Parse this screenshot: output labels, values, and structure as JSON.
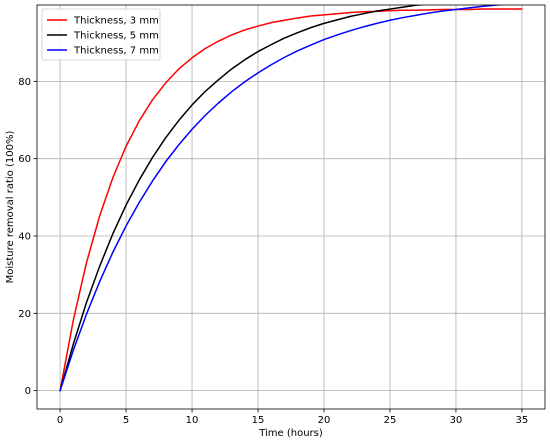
{
  "chart_data": {
    "type": "line",
    "title": "",
    "xlabel": "Time (hours)",
    "ylabel": "Moisture removal ratio (100%)",
    "xlim": [
      -1.75,
      36.75
    ],
    "ylim": [
      -4.75,
      99.75
    ],
    "xticks": [
      0,
      5,
      10,
      15,
      20,
      25,
      30,
      35
    ],
    "yticks": [
      0,
      20,
      40,
      60,
      80
    ],
    "grid": true,
    "legend_position": "top-left",
    "x": [
      0,
      1,
      2,
      3,
      4,
      5,
      6,
      7,
      8,
      9,
      10,
      11,
      12,
      13,
      14,
      15,
      16,
      17,
      18,
      19,
      20,
      21,
      22,
      23,
      24,
      25,
      26,
      27,
      28,
      29,
      30,
      31,
      32,
      33,
      34,
      35
    ],
    "series": [
      {
        "name": "Thickness, 3 mm",
        "color": "#ff0000",
        "values": [
          0,
          18.2,
          33.1,
          45.2,
          55.1,
          63.2,
          69.8,
          75.2,
          79.6,
          83.2,
          86.1,
          88.5,
          90.4,
          92.0,
          93.3,
          94.3,
          95.2,
          95.8,
          96.4,
          96.9,
          97.2,
          97.5,
          97.8,
          98.0,
          98.1,
          98.3,
          98.4,
          98.4,
          98.5,
          98.6,
          98.6,
          98.6,
          98.7,
          98.7,
          98.7,
          98.7
        ]
      },
      {
        "name": "Thickness, 5 mm",
        "color": "#000000",
        "values": [
          0,
          12.0,
          22.8,
          32.2,
          40.6,
          48.0,
          54.5,
          60.3,
          65.4,
          69.9,
          73.9,
          77.4,
          80.4,
          83.2,
          85.6,
          87.7,
          89.5,
          91.2,
          92.6,
          93.9,
          95.0,
          95.9,
          96.8,
          97.5,
          98.2,
          98.7,
          99.2,
          99.7,
          100.0,
          100.4,
          100.6,
          100.9,
          101.1,
          101.3,
          101.5,
          101.6
        ]
      },
      {
        "name": "Thickness, 7 mm",
        "color": "#0000ff",
        "values": [
          0,
          10.4,
          19.8,
          28.2,
          35.8,
          42.6,
          48.7,
          54.2,
          59.2,
          63.6,
          67.6,
          71.2,
          74.4,
          77.3,
          79.9,
          82.2,
          84.3,
          86.2,
          87.9,
          89.4,
          90.8,
          92.0,
          93.1,
          94.1,
          95.0,
          95.8,
          96.5,
          97.1,
          97.7,
          98.2,
          98.6,
          99.0,
          99.4,
          99.7,
          100.0,
          100.3
        ]
      }
    ]
  }
}
